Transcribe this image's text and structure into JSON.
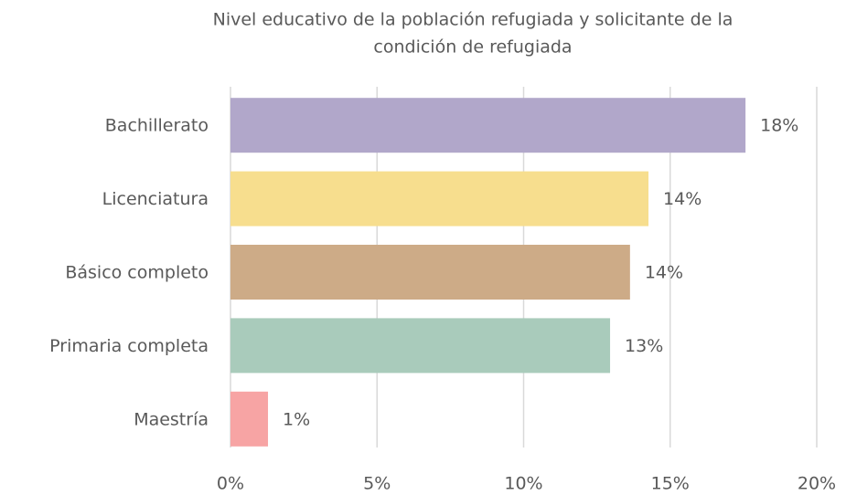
{
  "chart_data": {
    "type": "bar",
    "orientation": "horizontal",
    "title": [
      "Nivel educativo de la población refugiada y solicitante de la",
      "condición de refugiada"
    ],
    "categories": [
      "Bachillerato",
      "Licenciatura",
      "Básico completo",
      "Primaria completa",
      "Maestría"
    ],
    "values": [
      17.57,
      14.26,
      13.63,
      12.95,
      1.28
    ],
    "value_labels": [
      "18%",
      "14%",
      "14%",
      "13%",
      "1%"
    ],
    "colors": [
      "#b1a7ca",
      "#f7de8e",
      "#cdab87",
      "#a9cbbb",
      "#f7a4a4"
    ],
    "xlim": [
      0,
      20
    ],
    "xticks": [
      {
        "value": 0,
        "label": "0%"
      },
      {
        "value": 5,
        "label": "5%"
      },
      {
        "value": 10,
        "label": "10%"
      },
      {
        "value": 15,
        "label": "15%"
      },
      {
        "value": 20,
        "label": "20%"
      }
    ],
    "grid": true
  }
}
